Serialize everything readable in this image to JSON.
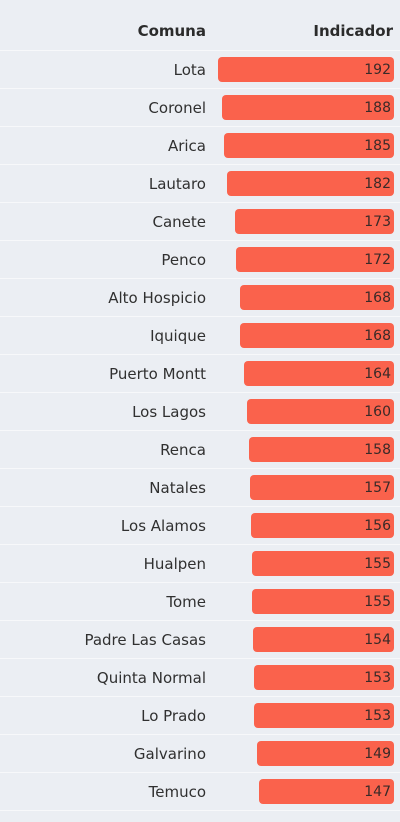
{
  "header": {
    "comuna_label": "Comuna",
    "indicador_label": "Indicador"
  },
  "colors": {
    "bar": "#fa624c",
    "background": "#ebeef3"
  },
  "chart_data": {
    "type": "bar",
    "orientation": "horizontal",
    "columns": [
      "Comuna",
      "Indicador"
    ],
    "categories": [
      "Lota",
      "Coronel",
      "Arica",
      "Lautaro",
      "Canete",
      "Penco",
      "Alto Hospicio",
      "Iquique",
      "Puerto Montt",
      "Los Lagos",
      "Renca",
      "Natales",
      "Los Alamos",
      "Hualpen",
      "Tome",
      "Padre Las Casas",
      "Quinta Normal",
      "Lo Prado",
      "Galvarino",
      "Temuco"
    ],
    "values": [
      192,
      188,
      185,
      182,
      173,
      172,
      168,
      168,
      164,
      160,
      158,
      157,
      156,
      155,
      155,
      154,
      153,
      153,
      149,
      147
    ],
    "xlim": [
      0,
      192
    ],
    "sort": "descending"
  }
}
